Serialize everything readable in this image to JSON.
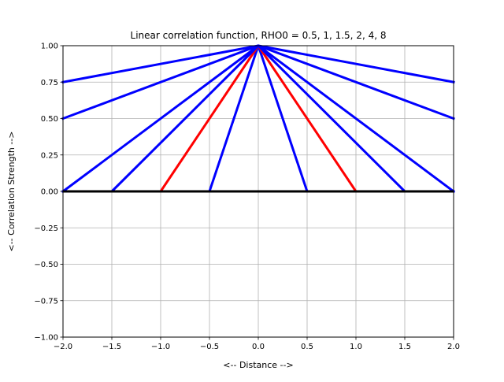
{
  "chart_data": {
    "type": "line",
    "title": "Linear correlation function, RHO0 = 0.5, 1, 1.5, 2, 4, 8",
    "xlabel": "<-- Distance -->",
    "ylabel": "<-- Correlation Strength -->",
    "xlim": [
      -2.0,
      2.0
    ],
    "ylim": [
      -1.0,
      1.0
    ],
    "grid": true,
    "legend": "none",
    "x_ticks": [
      "−2.0",
      "−1.5",
      "−1.0",
      "−0.5",
      "0.0",
      "0.5",
      "1.0",
      "1.5",
      "2.0"
    ],
    "x_tick_values": [
      -2.0,
      -1.5,
      -1.0,
      -0.5,
      0.0,
      0.5,
      1.0,
      1.5,
      2.0
    ],
    "y_ticks": [
      "−1.00",
      "−0.75",
      "−0.50",
      "−0.25",
      "0.00",
      "0.25",
      "0.50",
      "0.75",
      "1.00"
    ],
    "y_tick_values": [
      -1.0,
      -0.75,
      -0.5,
      -0.25,
      0.0,
      0.25,
      0.5,
      0.75,
      1.0
    ],
    "series": [
      {
        "rho0": 0.5,
        "color": "#0000ff",
        "x": [
          -2.0,
          -0.5,
          0.0,
          0.5,
          2.0
        ],
        "y": [
          0.0,
          0.0,
          1.0,
          0.0,
          0.0
        ]
      },
      {
        "rho0": 1.0,
        "color": "#ff0000",
        "x": [
          -2.0,
          -1.0,
          0.0,
          1.0,
          2.0
        ],
        "y": [
          0.0,
          0.0,
          1.0,
          0.0,
          0.0
        ]
      },
      {
        "rho0": 1.5,
        "color": "#0000ff",
        "x": [
          -2.0,
          -1.5,
          0.0,
          1.5,
          2.0
        ],
        "y": [
          0.0,
          0.0,
          1.0,
          0.0,
          0.0
        ]
      },
      {
        "rho0": 2.0,
        "color": "#0000ff",
        "x": [
          -2.0,
          0.0,
          2.0
        ],
        "y": [
          0.0,
          1.0,
          0.0
        ]
      },
      {
        "rho0": 4.0,
        "color": "#0000ff",
        "x": [
          -2.0,
          0.0,
          2.0
        ],
        "y": [
          0.5,
          1.0,
          0.5
        ]
      },
      {
        "rho0": 8.0,
        "color": "#0000ff",
        "x": [
          -2.0,
          0.0,
          2.0
        ],
        "y": [
          0.75,
          1.0,
          0.75
        ]
      }
    ],
    "baseline": {
      "color": "#000000",
      "y": 0.0
    }
  }
}
